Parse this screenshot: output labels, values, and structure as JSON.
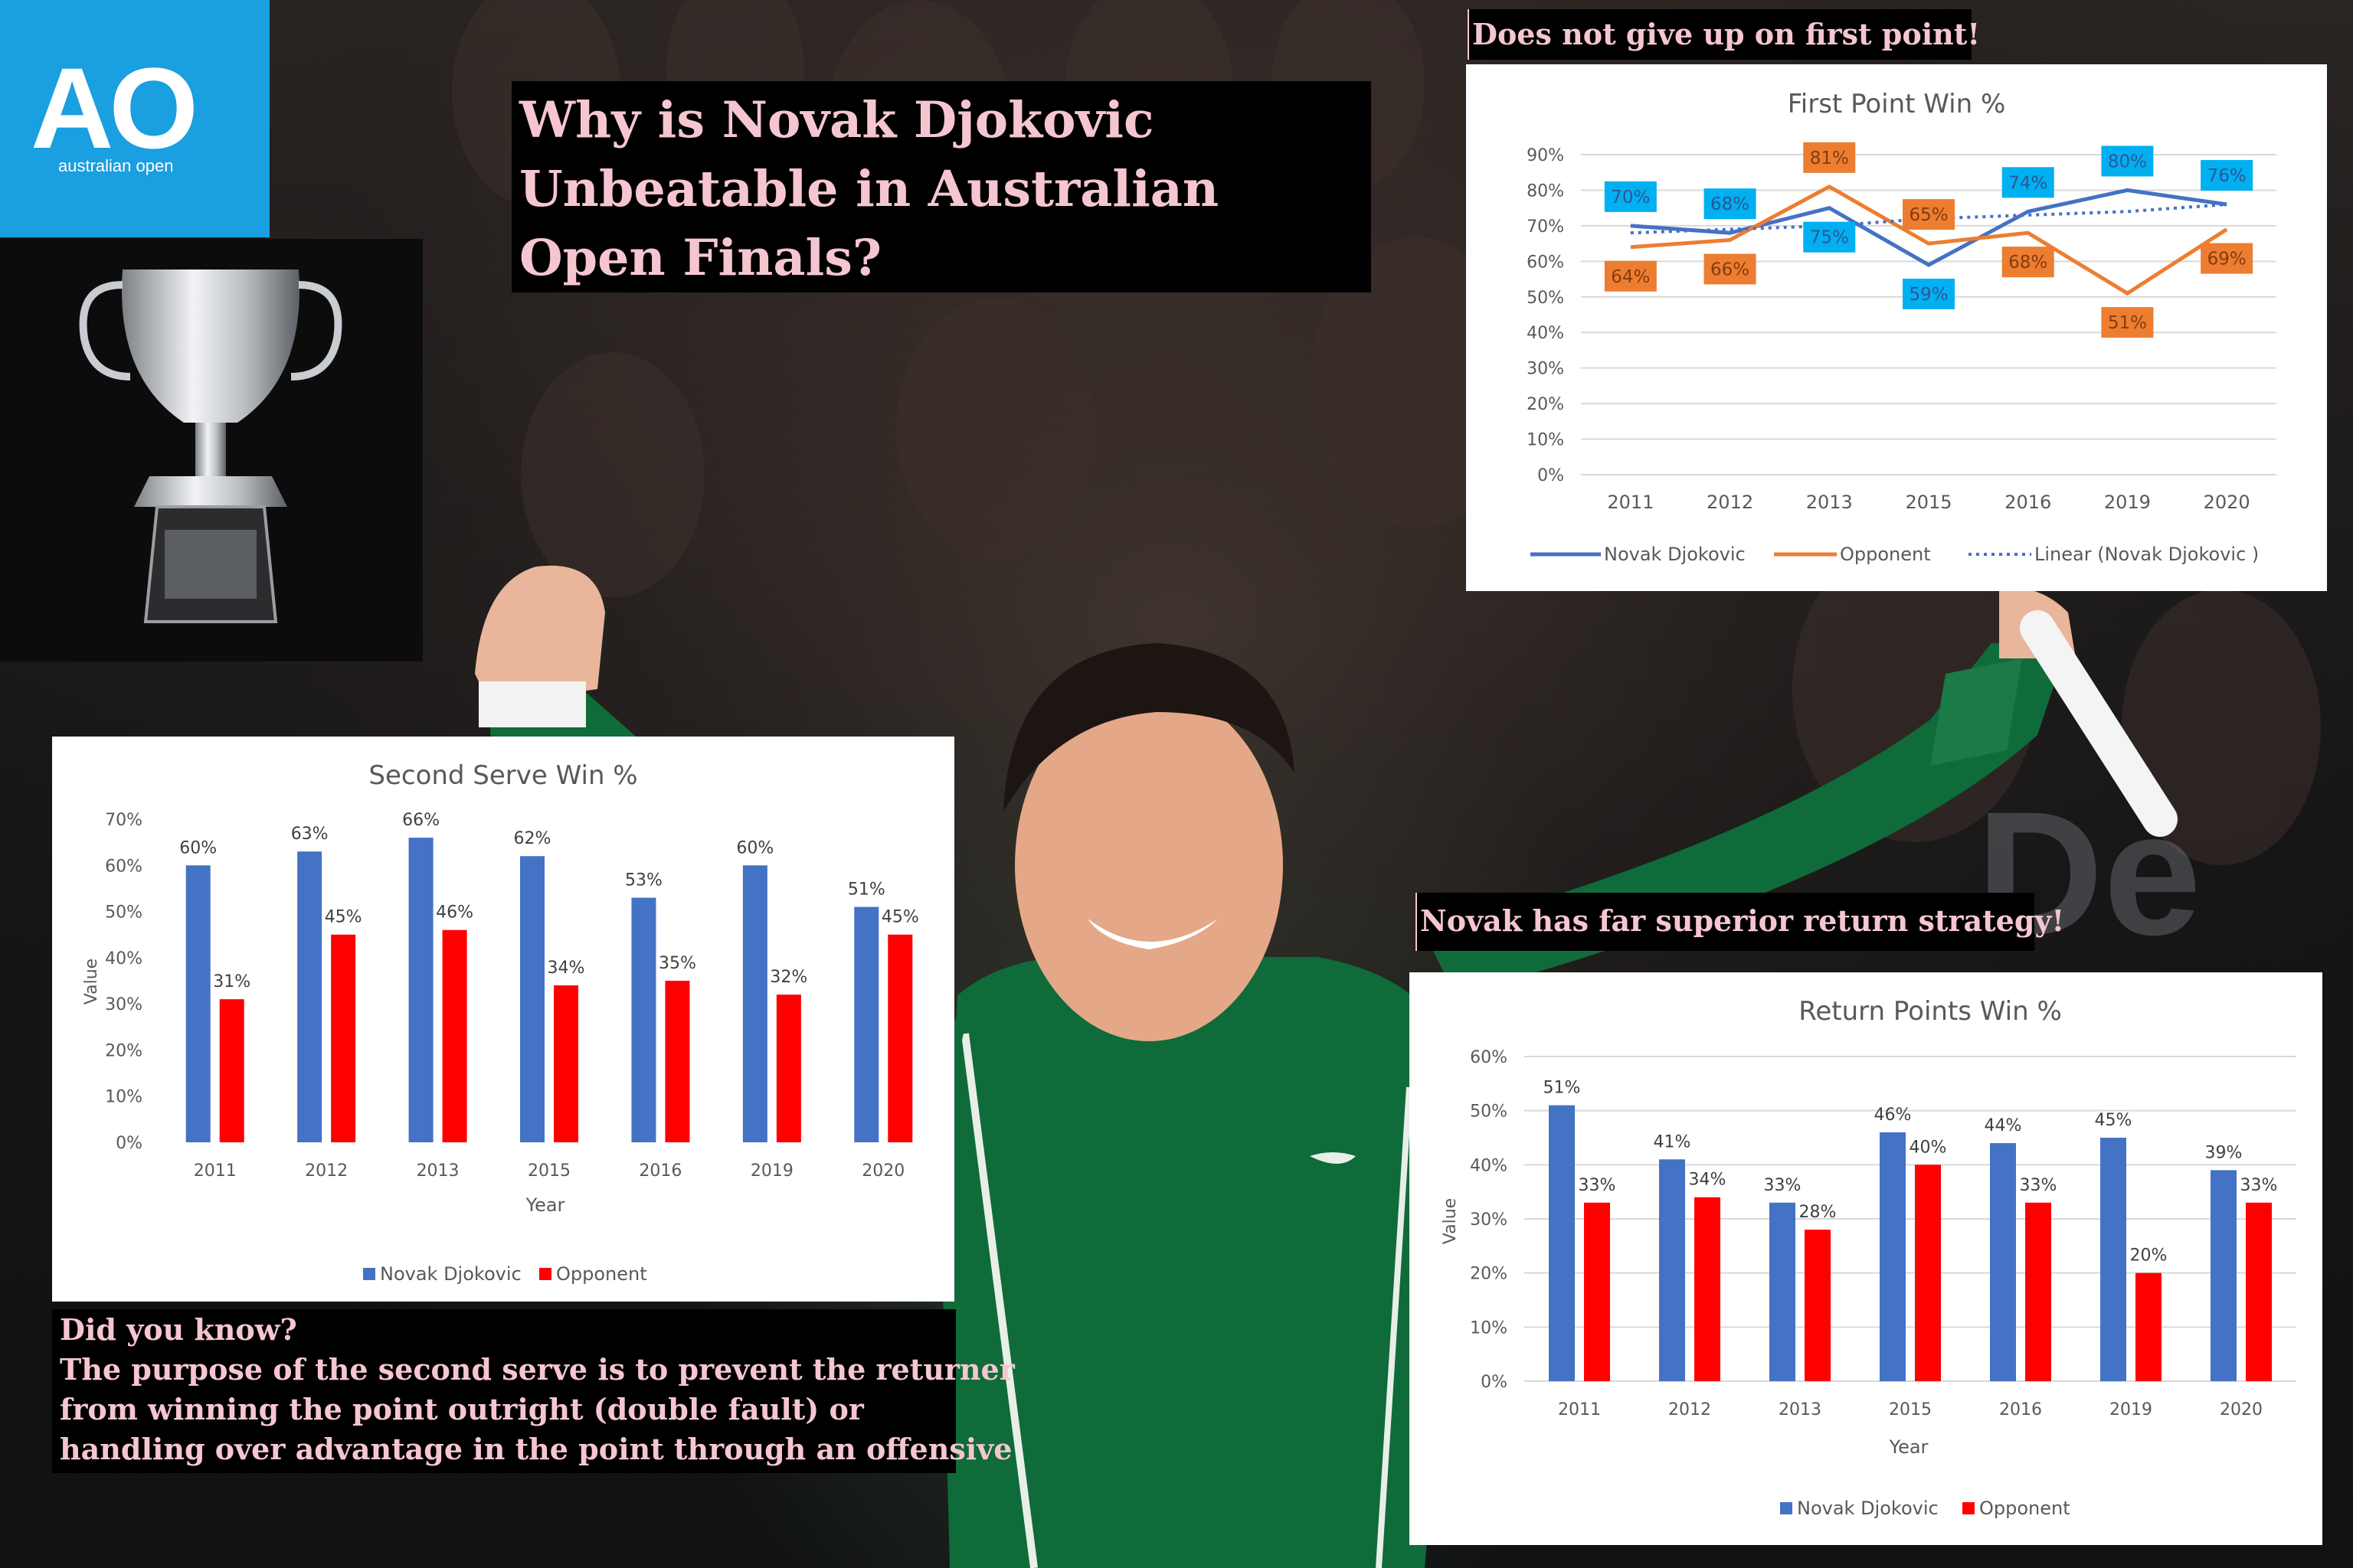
{
  "logo": {
    "mark": "AO",
    "sub": "australian open"
  },
  "title": "Why is Novak Djokovic Unbeatable in Australian Open Finals?",
  "captions": {
    "first_point": "Does not give up on first point!",
    "return": "Novak has far superior return strategy!"
  },
  "did_you_know": {
    "heading": "Did you know?",
    "lines": [
      "The purpose of the second serve is to prevent the returner",
      "from winning the point outright (double fault) or",
      "handling over advantage in the point through an offensive"
    ]
  },
  "colors": {
    "djokovic_line": "#4472c4",
    "opponent_line": "#ed7d31",
    "djokovic_bar": "#4472c4",
    "opponent_bar": "#ff0000",
    "label_blue": "#00b0f0",
    "label_orange": "#ed7d31"
  },
  "chart_data": [
    {
      "type": "line",
      "title": "First Point Win %",
      "categories": [
        "2011",
        "2012",
        "2013",
        "2015",
        "2016",
        "2019",
        "2020"
      ],
      "series": [
        {
          "name": "Novak Djokovic",
          "values": [
            70,
            68,
            75,
            59,
            74,
            80,
            76
          ]
        },
        {
          "name": "Opponent",
          "values": [
            64,
            66,
            81,
            65,
            68,
            51,
            69
          ]
        },
        {
          "name": "Linear (Novak Djokovic )",
          "values": [
            68,
            69,
            70,
            72,
            73,
            74,
            76
          ]
        }
      ],
      "ylim": [
        0,
        90
      ],
      "yticks": [
        "0%",
        "10%",
        "20%",
        "30%",
        "40%",
        "50%",
        "60%",
        "70%",
        "80%",
        "90%"
      ],
      "grid": true,
      "legend": "bottom"
    },
    {
      "type": "bar",
      "title": "Second Serve Win %",
      "categories": [
        "2011",
        "2012",
        "2013",
        "2015",
        "2016",
        "2019",
        "2020"
      ],
      "series": [
        {
          "name": "Novak Djokovic",
          "values": [
            60,
            63,
            66,
            62,
            53,
            60,
            51
          ]
        },
        {
          "name": "Opponent",
          "values": [
            31,
            45,
            46,
            34,
            35,
            32,
            45
          ]
        }
      ],
      "xlabel": "Year",
      "ylabel": "Value",
      "ylim": [
        0,
        70
      ],
      "yticks": [
        "0%",
        "10%",
        "20%",
        "30%",
        "40%",
        "50%",
        "60%",
        "70%"
      ],
      "grid": false,
      "legend": "bottom"
    },
    {
      "type": "bar",
      "title": "Return Points Win %",
      "categories": [
        "2011",
        "2012",
        "2013",
        "2015",
        "2016",
        "2019",
        "2020"
      ],
      "series": [
        {
          "name": "Novak Djokovic",
          "values": [
            51,
            41,
            33,
            46,
            44,
            45,
            39
          ]
        },
        {
          "name": "Opponent",
          "values": [
            33,
            34,
            28,
            40,
            33,
            20,
            33
          ]
        }
      ],
      "xlabel": "Year",
      "ylabel": "Value",
      "ylim": [
        0,
        60
      ],
      "yticks": [
        "0%",
        "10%",
        "20%",
        "30%",
        "40%",
        "50%",
        "60%"
      ],
      "grid": true,
      "legend": "bottom"
    }
  ]
}
